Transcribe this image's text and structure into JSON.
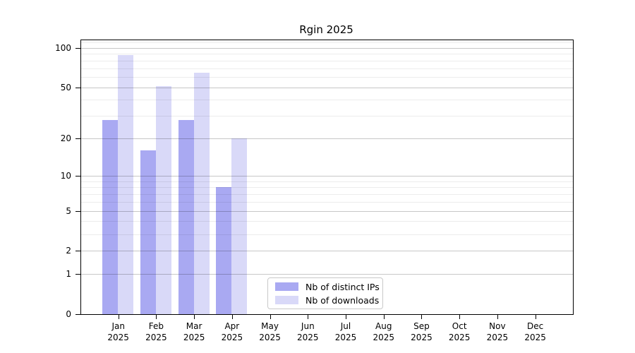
{
  "title": "Rgin 2025",
  "chart_data": {
    "type": "bar",
    "title": "Rgin 2025",
    "xlabel": "",
    "ylabel": "",
    "categories": [
      "Jan 2025",
      "Feb 2025",
      "Mar 2025",
      "Apr 2025",
      "May 2025",
      "Jun 2025",
      "Jul 2025",
      "Aug 2025",
      "Sep 2025",
      "Oct 2025",
      "Nov 2025",
      "Dec 2025"
    ],
    "series": [
      {
        "name": "Nb of distinct IPs",
        "color": "#a9a9f2",
        "values": [
          28,
          16,
          28,
          8,
          null,
          null,
          null,
          null,
          null,
          null,
          null,
          null
        ]
      },
      {
        "name": "Nb of downloads",
        "color": "#d9d9f8",
        "values": [
          88,
          51,
          65,
          20,
          null,
          null,
          null,
          null,
          null,
          null,
          null,
          null
        ]
      }
    ],
    "y_scale": "log(1+x)",
    "ylim": [
      0,
      114
    ],
    "y_major_ticks": [
      100,
      50,
      20,
      10,
      5,
      2,
      1,
      0
    ],
    "y_minor_gridlines": [
      110,
      90,
      80,
      70,
      60,
      40,
      30,
      9,
      8,
      7,
      6,
      4,
      3
    ],
    "grid": "horizontal, drawn over bars",
    "legend_position": "lower center"
  }
}
